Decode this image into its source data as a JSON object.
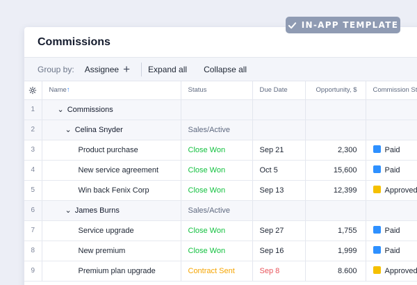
{
  "badge": {
    "label": "IN-APP TEMPLATE"
  },
  "window": {
    "title": "Commissions"
  },
  "toolbar": {
    "group_by_label": "Group by:",
    "group_value": "Assignee",
    "expand_all": "Expand all",
    "collapse_all": "Collapse all"
  },
  "columns": {
    "name": "Name",
    "sort_arrow": "↑",
    "status": "Status",
    "due_date": "Due Date",
    "opportunity": "Opportunity, $",
    "commission": "Commission St"
  },
  "rows": [
    {
      "num": "1",
      "name": "Commissions",
      "status": "",
      "due": "",
      "opp": "",
      "comm": ""
    },
    {
      "num": "2",
      "name": "Celina Snyder",
      "status": "Sales/Active",
      "due": "",
      "opp": "",
      "comm": ""
    },
    {
      "num": "3",
      "name": "Product purchase",
      "status": "Close Won",
      "due": "Sep 21",
      "opp": "2,300",
      "comm": "Paid"
    },
    {
      "num": "4",
      "name": "New service agreement",
      "status": "Close Won",
      "due": "Oct 5",
      "opp": "15,600",
      "comm": "Paid"
    },
    {
      "num": "5",
      "name": "Win back Fenix Corp",
      "status": "Close Won",
      "due": "Sep 13",
      "opp": "12,399",
      "comm": "Approved"
    },
    {
      "num": "6",
      "name": "James Burns",
      "status": "Sales/Active",
      "due": "",
      "opp": "",
      "comm": ""
    },
    {
      "num": "7",
      "name": "Service upgrade",
      "status": "Close Won",
      "due": "Sep 27",
      "opp": "1,755",
      "comm": "Paid"
    },
    {
      "num": "8",
      "name": "New premium",
      "status": "Close Won",
      "due": "Sep 16",
      "opp": "1,999",
      "comm": "Paid"
    },
    {
      "num": "9",
      "name": "Premium plan upgrade",
      "status": "Contract Sent",
      "due": "Sep 8",
      "opp": "8.600",
      "comm": "Approved"
    }
  ],
  "colors": {
    "paid": "#2e90ff",
    "approved": "#f5c000",
    "close_won": "#14c140",
    "contract_sent": "#f5a400",
    "overdue": "#e8545b"
  },
  "icons": {
    "badge": "check-icon",
    "settings": "gear-icon",
    "add": "plus-icon",
    "expand": "chevron-down-icon"
  }
}
